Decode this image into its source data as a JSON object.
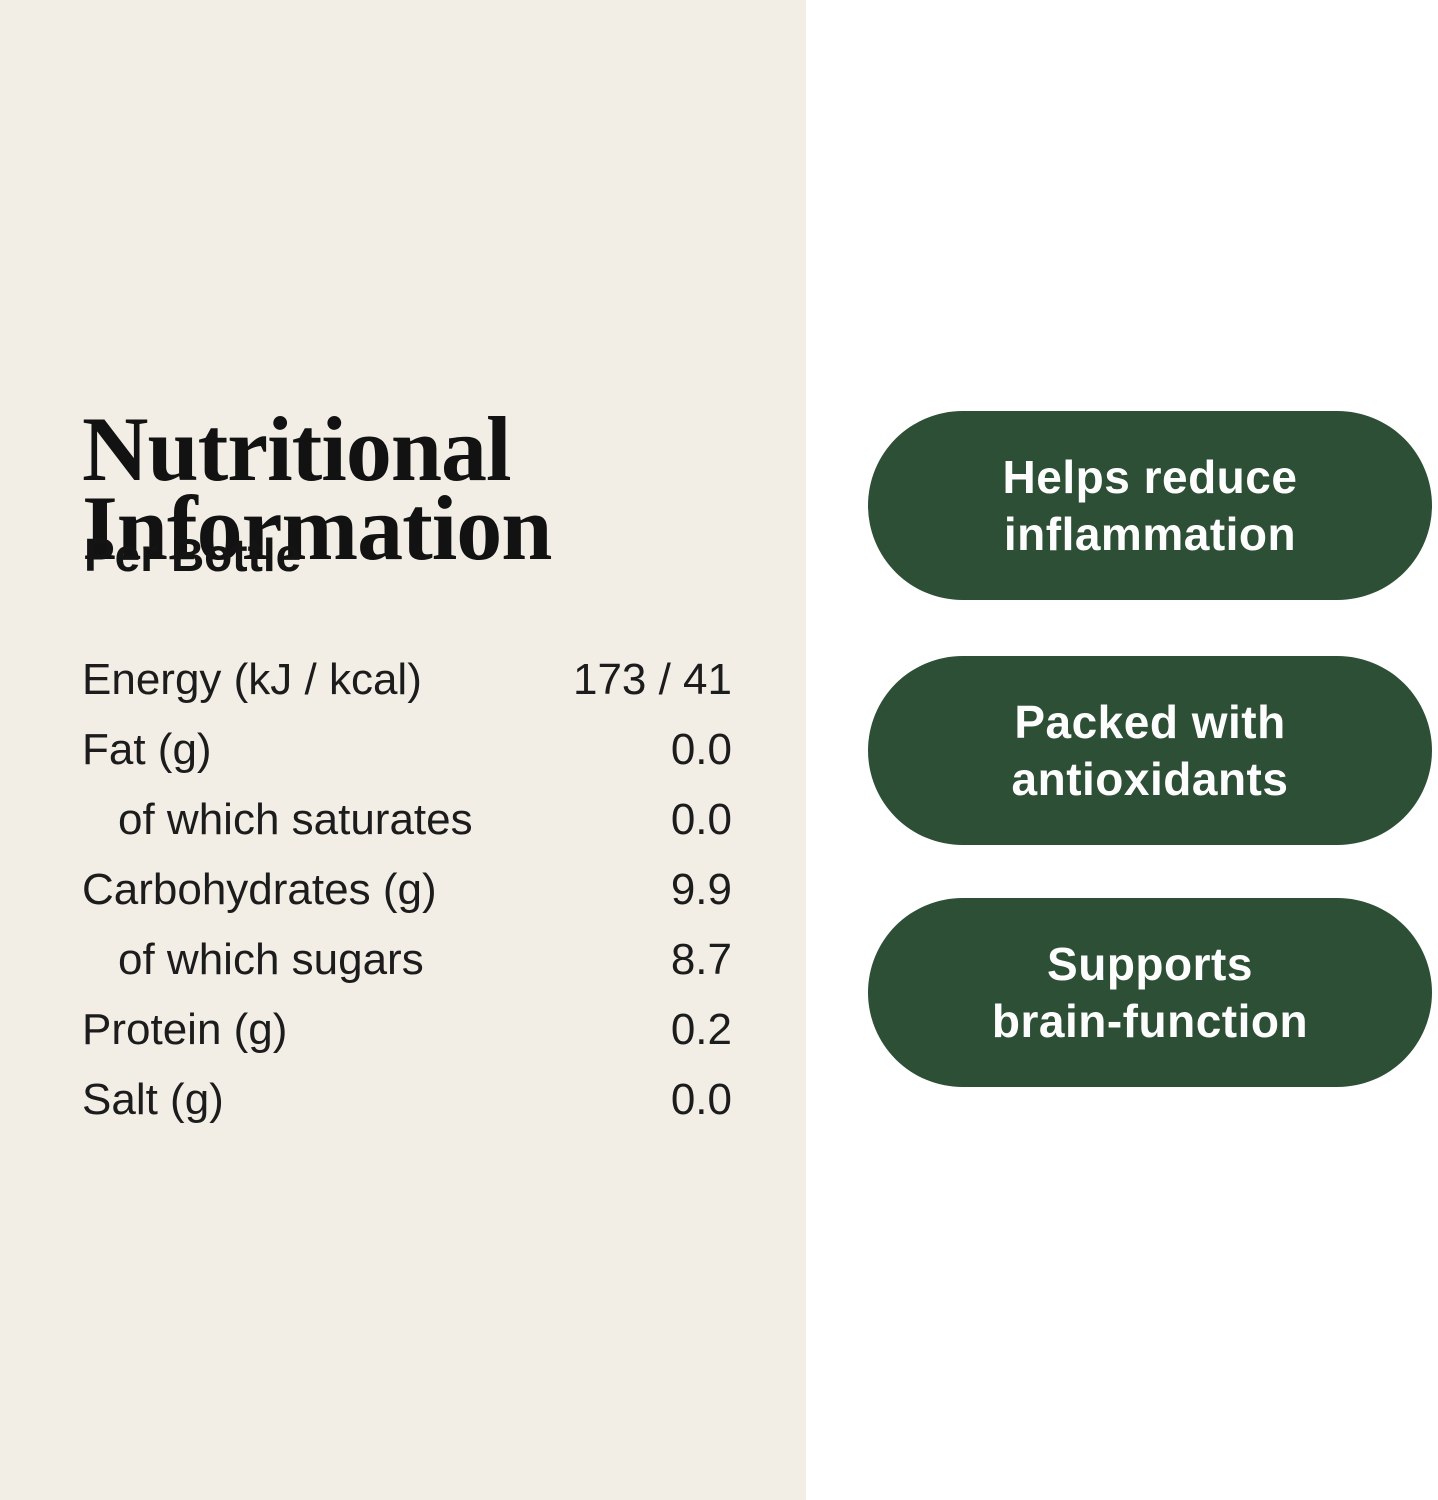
{
  "page": {
    "left_background": "#f2eee6",
    "right_background": "#ffffff",
    "badge_green": "#2d4f36",
    "text_color": "#1c1c1c"
  },
  "nutrition_panel": {
    "title_line1": "Nutritional",
    "title_line2": "Information",
    "subtitle": "Per Bottle",
    "rows": [
      {
        "label": "Energy (kJ / kcal)",
        "value": "173 / 41",
        "indent": false
      },
      {
        "label": "Fat (g)",
        "value": "0.0",
        "indent": false
      },
      {
        "label": "of which saturates",
        "value": "0.0",
        "indent": true
      },
      {
        "label": "Carbohydrates (g)",
        "value": "9.9",
        "indent": false
      },
      {
        "label": "of which sugars",
        "value": "8.7",
        "indent": true
      },
      {
        "label": "Protein (g)",
        "value": "0.2",
        "indent": false
      },
      {
        "label": "Salt (g)",
        "value": "0.0",
        "indent": false
      }
    ]
  },
  "benefit_badges": [
    {
      "line1": "Helps reduce",
      "line2": "inflammation"
    },
    {
      "line1": "Packed with",
      "line2": "antioxidants"
    },
    {
      "line1": "Supports",
      "line2": "brain-function"
    }
  ]
}
